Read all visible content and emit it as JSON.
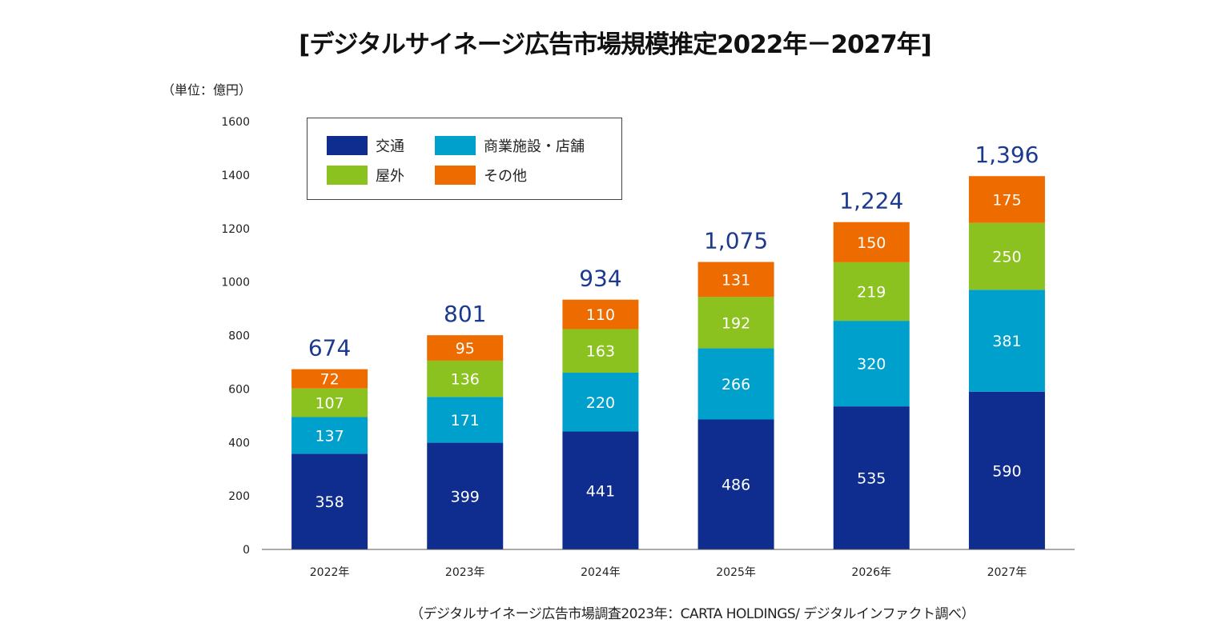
{
  "chart_data": {
    "type": "bar",
    "stacked": true,
    "title": "[デジタルサイネージ広告市場規模推定2022年－2027年]",
    "unit_label": "（単位：億円）",
    "source": "（デジタルサイネージ広告市場調査2023年：CARTA HOLDINGS/ デジタルインファクト調べ）",
    "categories": [
      "2022年",
      "2023年",
      "2024年",
      "2025年",
      "2026年",
      "2027年"
    ],
    "series": [
      {
        "name": "交通",
        "color": "#0f2d8f",
        "values": [
          358,
          399,
          441,
          486,
          535,
          590
        ]
      },
      {
        "name": "商業施設・店舗",
        "color": "#00a0cc",
        "values": [
          137,
          171,
          220,
          266,
          320,
          381
        ]
      },
      {
        "name": "屋外",
        "color": "#8cc220",
        "values": [
          107,
          136,
          163,
          192,
          219,
          250
        ]
      },
      {
        "name": "その他",
        "color": "#ee6b00",
        "values": [
          72,
          95,
          110,
          131,
          150,
          175
        ]
      }
    ],
    "totals": [
      "674",
      "801",
      "934",
      "1,075",
      "1,224",
      "1,396"
    ],
    "total_color": "#1b3a8f",
    "ylim": [
      0,
      1600
    ],
    "yticks": [
      0,
      200,
      400,
      600,
      800,
      1000,
      1200,
      1400,
      1600
    ],
    "grid": false,
    "legend_position": "top-left"
  }
}
